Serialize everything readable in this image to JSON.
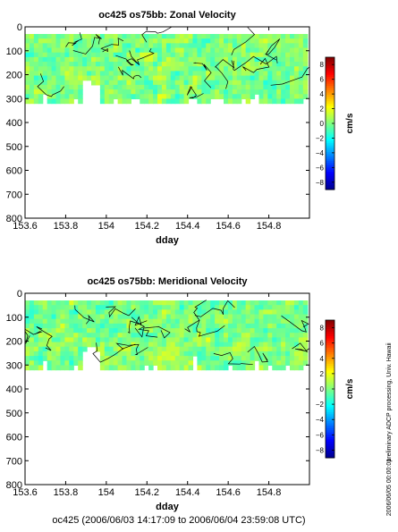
{
  "footer": "oc425 (2006/06/03 14:17:09 to 2006/06/04 23:59:08 UTC)",
  "side_caption": "preliminary ADCP processing,   Univ. Hawaii",
  "side_date": "2006/06/05 00:00:01",
  "colors": {
    "palette": [
      "#00008f",
      "#0000ff",
      "#0080ff",
      "#00ffff",
      "#80ff80",
      "#ffff00",
      "#ff8000",
      "#ff0000",
      "#800000"
    ],
    "contour": "#000000",
    "background": "#ffffff"
  },
  "chart_data": [
    {
      "type": "heatmap",
      "title": "oc425 os75bb: Zonal Velocity",
      "xlabel": "dday",
      "ylabel": "",
      "xlim": [
        153.6,
        155.0
      ],
      "ylim": [
        800,
        0
      ],
      "x_ticks": [
        153.6,
        153.8,
        154,
        154.2,
        154.4,
        154.6,
        154.8
      ],
      "x_tick_labels": [
        "153.6",
        "153.8",
        "154",
        "154.2",
        "154.4",
        "154.6",
        "154.8"
      ],
      "y_ticks": [
        0,
        100,
        200,
        300,
        400,
        500,
        600,
        700,
        800
      ],
      "y_tick_labels": [
        "0",
        "100",
        "200",
        "300",
        "400",
        "500",
        "600",
        "700",
        "800"
      ],
      "data_extent": {
        "x": [
          153.6,
          154.99
        ],
        "depth": [
          30,
          320
        ]
      },
      "dominant_value_range": [
        -2,
        2
      ],
      "colorbar": {
        "label": "cm/s",
        "range": [
          -9,
          9
        ],
        "ticks": [
          8,
          6,
          4,
          2,
          0,
          -2,
          -4,
          -6,
          -8
        ],
        "tick_labels": [
          "8",
          "6",
          "4",
          "2",
          "0",
          "−2",
          "−4",
          "−6",
          "−8"
        ]
      }
    },
    {
      "type": "heatmap",
      "title": "oc425 os75bb: Meridional Velocity",
      "xlabel": "dday",
      "ylabel": "",
      "xlim": [
        153.6,
        155.0
      ],
      "ylim": [
        800,
        0
      ],
      "x_ticks": [
        153.6,
        153.8,
        154,
        154.2,
        154.4,
        154.6,
        154.8
      ],
      "x_tick_labels": [
        "153.6",
        "153.8",
        "154",
        "154.2",
        "154.4",
        "154.6",
        "154.8"
      ],
      "y_ticks": [
        0,
        100,
        200,
        300,
        400,
        500,
        600,
        700,
        800
      ],
      "y_tick_labels": [
        "0",
        "100",
        "200",
        "300",
        "400",
        "500",
        "600",
        "700",
        "800"
      ],
      "data_extent": {
        "x": [
          153.6,
          154.99
        ],
        "depth": [
          30,
          320
        ]
      },
      "dominant_value_range": [
        -2,
        2
      ],
      "colorbar": {
        "label": "cm/s",
        "range": [
          -9,
          9
        ],
        "ticks": [
          8,
          6,
          4,
          2,
          0,
          -2,
          -4,
          -6,
          -8
        ],
        "tick_labels": [
          "8",
          "6",
          "4",
          "2",
          "0",
          "−2",
          "−4",
          "−6",
          "−8"
        ]
      }
    }
  ]
}
